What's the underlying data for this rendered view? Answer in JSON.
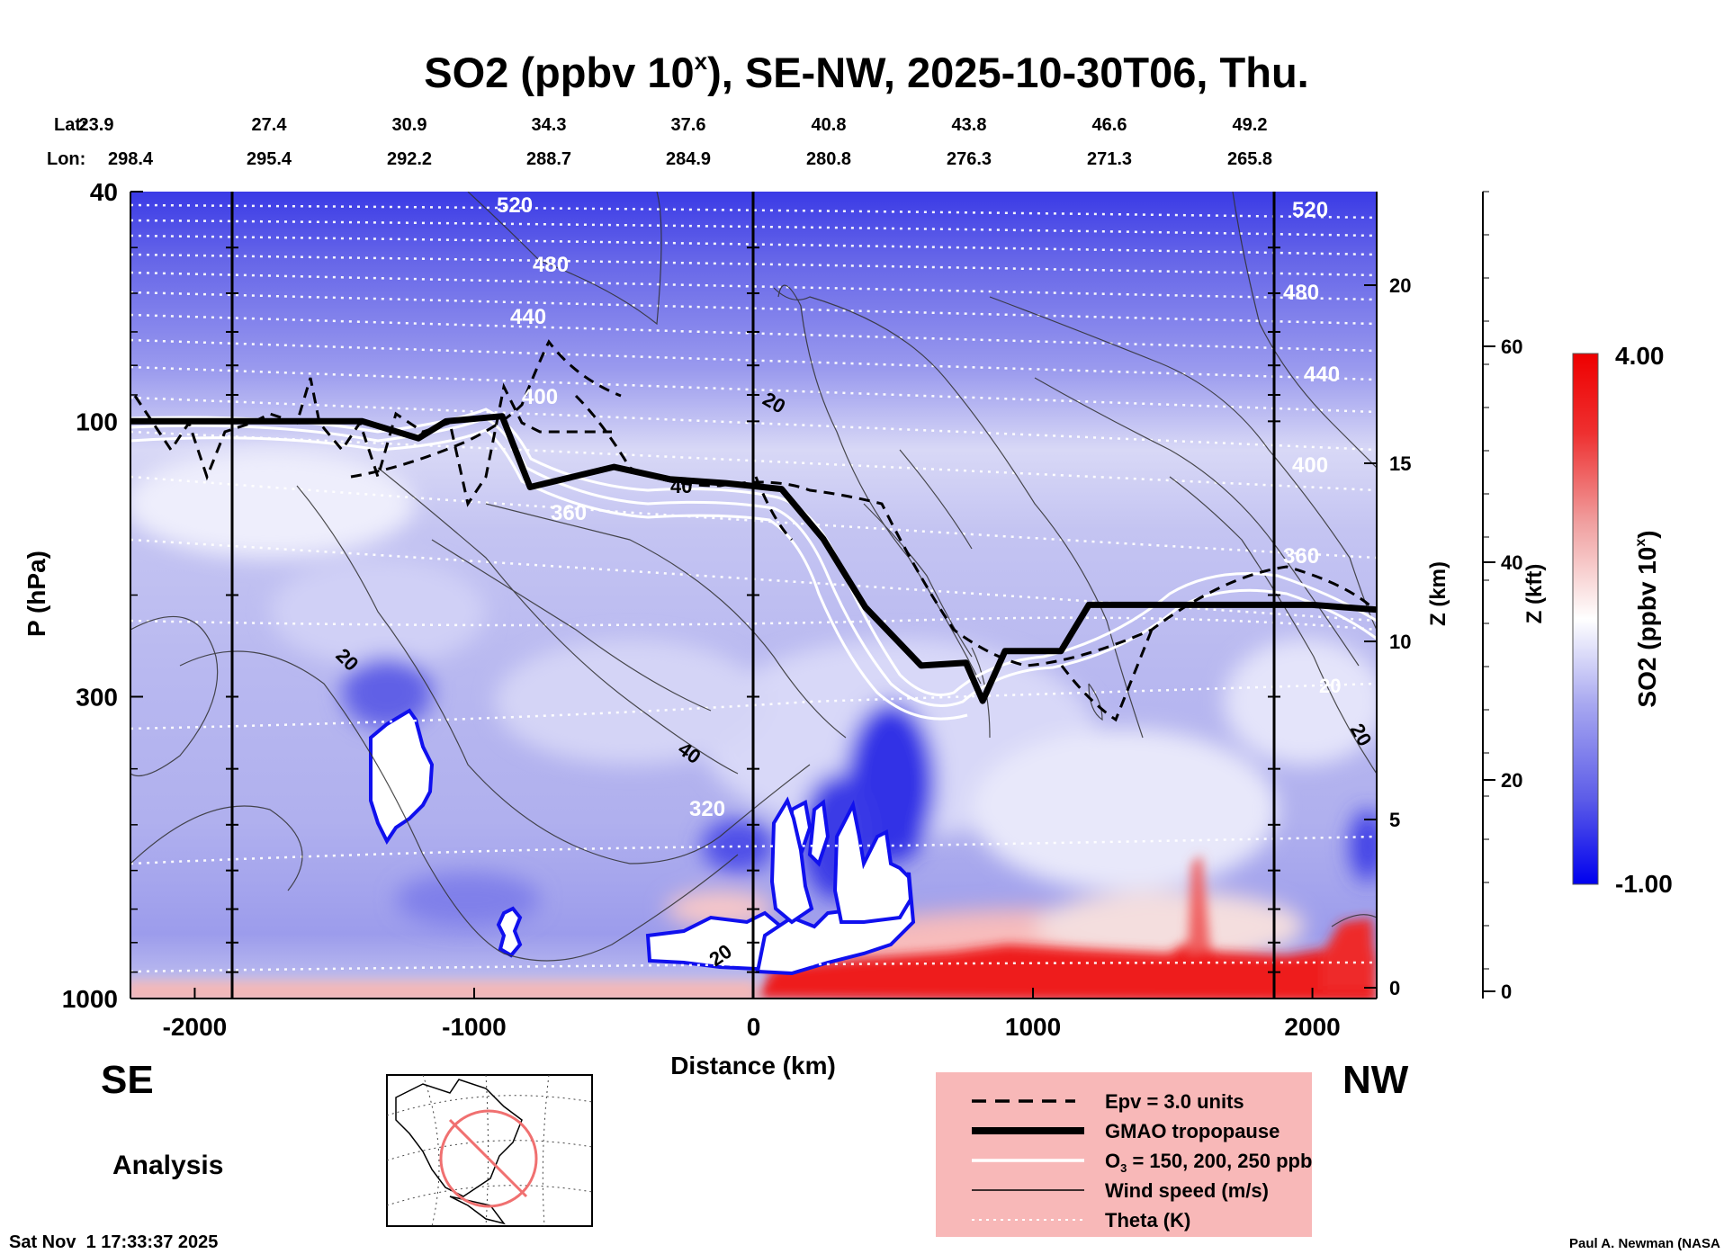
{
  "chart_data": {
    "type": "heatmap",
    "title": "SO2 (ppbv 10",
    "title_sup": "x",
    "title_rest": "), SE-NW, 2025-10-30T06, Thu.",
    "xlabel": "Distance (km)",
    "ylabel": "P (hPa)",
    "z_km_label": "Z (km)",
    "z_kft_label": "Z (kft)",
    "colorbar_label_main": "SO2 (ppbv 10",
    "colorbar_label_sup": "x",
    "colorbar_label_end": ")",
    "colorbar_range": [
      -1.0,
      4.0
    ],
    "colorbar_max_label": "4.00",
    "colorbar_min_label": "-1.00",
    "colorbar_colors": [
      "#0000ee",
      "#5c5ce8",
      "#a8a8f0",
      "#ffffff",
      "#f0a0a0",
      "#ee3030",
      "#ee0000"
    ],
    "xlim": [
      -2230,
      2230
    ],
    "x_ticks": [
      -2000,
      -1000,
      0,
      1000,
      2000
    ],
    "x_tick_labels": [
      "-2000",
      "-1000",
      "0",
      "1000",
      "2000"
    ],
    "ylim_hpa": [
      1000,
      40
    ],
    "y_scale": "log",
    "y_tick_labels": [
      "40",
      "100",
      "300",
      "1000"
    ],
    "z_km_ticks": [
      "20",
      "15",
      "10",
      "5",
      "0"
    ],
    "z_kft_ticks": [
      "60",
      "40",
      "20",
      "0"
    ],
    "lat_label": "Lat:",
    "lon_label": "Lon:",
    "lat_values": [
      "23.9",
      "27.4",
      "30.9",
      "34.3",
      "37.6",
      "40.8",
      "43.8",
      "46.6",
      "49.2"
    ],
    "lon_values": [
      "298.4",
      "295.4",
      "292.2",
      "288.7",
      "284.9",
      "280.8",
      "276.3",
      "271.3",
      "265.8"
    ],
    "se_label": "SE",
    "nw_label": "NW",
    "analysis_label": "Analysis",
    "theta_contour_labels": [
      "520",
      "480",
      "440",
      "400",
      "360",
      "320",
      "520",
      "480",
      "440",
      "400",
      "360"
    ],
    "wind_contour_labels": [
      "20",
      "40",
      "20",
      "40",
      "20",
      "20",
      "20"
    ],
    "legend": [
      {
        "label": "Epv = 3.0 units",
        "style": "dashed-black"
      },
      {
        "label": "GMAO tropopause",
        "style": "thick-black"
      },
      {
        "label": "O",
        "sub": "3",
        "label_rest": " = 150, 200, 250 ppb",
        "style": "white"
      },
      {
        "label": "Wind speed (m/s)",
        "style": "thin-black"
      },
      {
        "label": "Theta (K)",
        "style": "dotted-white"
      }
    ],
    "legend_position": "bottom-center",
    "tropopause_hpa": [
      [
        -2230,
        100
      ],
      [
        -1800,
        100
      ],
      [
        -1400,
        100
      ],
      [
        -1200,
        107
      ],
      [
        -1100,
        100
      ],
      [
        -900,
        98
      ],
      [
        -800,
        130
      ],
      [
        -500,
        120
      ],
      [
        -300,
        126
      ],
      [
        -100,
        128
      ],
      [
        100,
        131
      ],
      [
        250,
        160
      ],
      [
        400,
        210
      ],
      [
        600,
        265
      ],
      [
        760,
        262
      ],
      [
        820,
        305
      ],
      [
        900,
        250
      ],
      [
        1100,
        250
      ],
      [
        1200,
        208
      ],
      [
        1500,
        208
      ],
      [
        2000,
        208
      ],
      [
        2230,
        212
      ]
    ]
  },
  "footer": {
    "timestamp": "Sat Nov  1 17:33:37 2025",
    "credit": "Paul A. Newman (NASA"
  }
}
